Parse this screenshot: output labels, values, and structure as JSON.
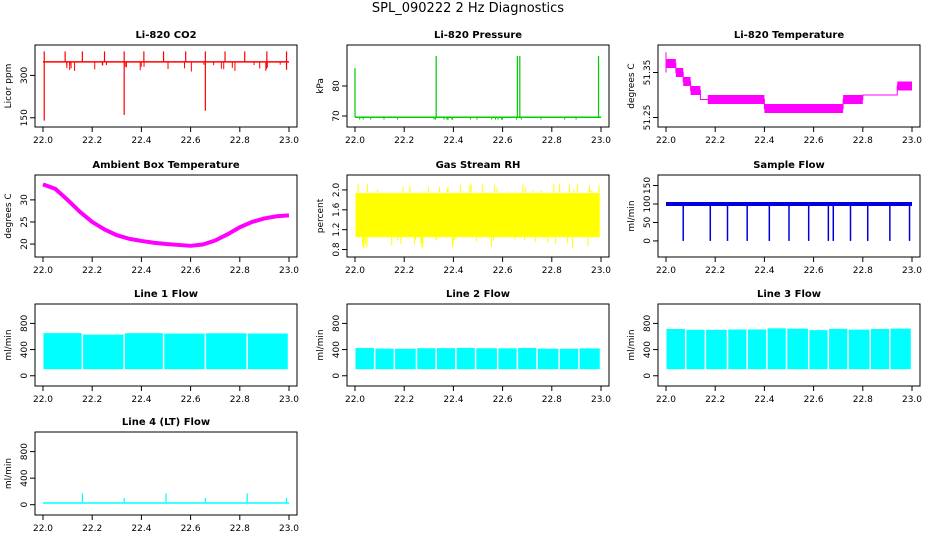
{
  "main_title": "SPL_090222  2 Hz Diagnostics",
  "chart_data": [
    {
      "id": "co2",
      "type": "line",
      "title": "Li-820 CO2",
      "ylabel": "Licor ppm",
      "xlim": [
        22.0,
        23.0
      ],
      "ylim": [
        135,
        390
      ],
      "xticks": [
        22.0,
        22.2,
        22.4,
        22.6,
        22.8,
        23.0
      ],
      "xtick_labels": [
        "22.0",
        "22.2",
        "22.4",
        "22.6",
        "22.8",
        "23.0"
      ],
      "yticks": [
        150,
        300
      ],
      "ytick_labels": [
        "150",
        "300"
      ],
      "color": "#ff0000",
      "baseline": 348,
      "spikes_up": [
        [
          22.005,
          385
        ],
        [
          22.09,
          385
        ],
        [
          22.16,
          385
        ],
        [
          22.25,
          385
        ],
        [
          22.33,
          385
        ],
        [
          22.41,
          385
        ],
        [
          22.49,
          385
        ],
        [
          22.58,
          385
        ],
        [
          22.66,
          385
        ],
        [
          22.74,
          385
        ],
        [
          22.82,
          385
        ],
        [
          22.91,
          385
        ],
        [
          22.99,
          385
        ]
      ],
      "spikes_down": [
        [
          22.005,
          140
        ],
        [
          22.33,
          160
        ],
        [
          22.66,
          175
        ],
        [
          22.99,
          320
        ]
      ]
    },
    {
      "id": "pressure",
      "type": "line",
      "title": "Li-820 Pressure",
      "ylabel": "kPa",
      "xlim": [
        22.0,
        23.0
      ],
      "ylim": [
        68,
        92
      ],
      "xticks": [
        22.0,
        22.2,
        22.4,
        22.6,
        22.8,
        23.0
      ],
      "xtick_labels": [
        "22.0",
        "22.2",
        "22.4",
        "22.6",
        "22.8",
        "23.0"
      ],
      "yticks": [
        70,
        80
      ],
      "ytick_labels": [
        "70",
        "80"
      ],
      "color": "#00cc00",
      "baseline": 69.6,
      "spikes_up": [
        [
          22.0,
          86
        ],
        [
          22.33,
          90
        ],
        [
          22.66,
          90
        ],
        [
          22.67,
          90
        ],
        [
          22.99,
          90
        ]
      ]
    },
    {
      "id": "temperature",
      "type": "line",
      "title": "Li-820 Temperature",
      "ylabel": "degrees C",
      "xlim": [
        22.0,
        23.0
      ],
      "ylim": [
        51.24,
        51.4
      ],
      "xticks": [
        22.0,
        22.2,
        22.4,
        22.6,
        22.8,
        23.0
      ],
      "xtick_labels": [
        "22.0",
        "22.2",
        "22.4",
        "22.6",
        "22.8",
        "23.0"
      ],
      "yticks": [
        51.25,
        51.35
      ],
      "ytick_labels": [
        "51.25",
        "51.35"
      ],
      "color": "#ff00ff",
      "x": [
        22.0,
        22.04,
        22.04,
        22.07,
        22.07,
        22.1,
        22.1,
        22.14,
        22.14,
        22.17,
        22.17,
        22.4,
        22.4,
        22.48,
        22.48,
        22.72,
        22.72,
        22.8,
        22.8,
        22.94,
        22.94,
        23.0
      ],
      "y": [
        51.37,
        51.37,
        51.35,
        51.35,
        51.33,
        51.33,
        51.31,
        51.31,
        51.29,
        51.29,
        51.29,
        51.29,
        51.27,
        51.27,
        51.27,
        51.27,
        51.29,
        51.29,
        51.3,
        51.3,
        51.32,
        51.32
      ]
    },
    {
      "id": "ambient",
      "type": "line",
      "title": "Ambient Box Temperature",
      "ylabel": "degrees C",
      "xlim": [
        22.0,
        23.0
      ],
      "ylim": [
        18.2,
        34.5
      ],
      "xticks": [
        22.0,
        22.2,
        22.4,
        22.6,
        22.8,
        23.0
      ],
      "xtick_labels": [
        "22.0",
        "22.2",
        "22.4",
        "22.6",
        "22.8",
        "23.0"
      ],
      "yticks": [
        20,
        25,
        30
      ],
      "ytick_labels": [
        "20",
        "25",
        "30"
      ],
      "color": "#ff00ff",
      "x": [
        22.0,
        22.05,
        22.1,
        22.15,
        22.2,
        22.25,
        22.3,
        22.35,
        22.4,
        22.45,
        22.5,
        22.55,
        22.6,
        22.65,
        22.7,
        22.75,
        22.8,
        22.85,
        22.9,
        22.95,
        23.0
      ],
      "y": [
        33.5,
        32.5,
        30.0,
        27.3,
        25.0,
        23.3,
        22.0,
        21.2,
        20.7,
        20.3,
        20.0,
        19.8,
        19.6,
        19.9,
        20.8,
        22.2,
        23.8,
        25.0,
        25.8,
        26.3,
        26.5
      ]
    },
    {
      "id": "rh",
      "type": "band",
      "title": "Gas Stream RH",
      "ylabel": "percent",
      "xlim": [
        22.0,
        23.0
      ],
      "ylim": [
        0.75,
        2.2
      ],
      "xticks": [
        22.0,
        22.2,
        22.4,
        22.6,
        22.8,
        23.0
      ],
      "xtick_labels": [
        "22.0",
        "22.2",
        "22.4",
        "22.6",
        "22.8",
        "23.0"
      ],
      "yticks": [
        0.8,
        1.2,
        1.6,
        2.0
      ],
      "ytick_labels": [
        "0.8",
        "1.2",
        "1.6",
        "2.0"
      ],
      "color": "#ffff00",
      "band_low": 1.05,
      "band_high": 1.95,
      "spike_low": 0.82,
      "spike_high": 2.13
    },
    {
      "id": "sample",
      "type": "line",
      "title": "Sample Flow",
      "ylabel": "ml/min",
      "xlim": [
        22.0,
        23.0
      ],
      "ylim": [
        -30,
        165
      ],
      "xticks": [
        22.0,
        22.2,
        22.4,
        22.6,
        22.8,
        23.0
      ],
      "xtick_labels": [
        "22.0",
        "22.2",
        "22.4",
        "22.6",
        "22.8",
        "23.0"
      ],
      "yticks": [
        0,
        50,
        100,
        150
      ],
      "ytick_labels": [
        "0",
        "50",
        "100",
        "150"
      ],
      "color": "#0000dd",
      "baseline": 100,
      "dips": [
        22.07,
        22.18,
        22.25,
        22.33,
        22.42,
        22.5,
        22.58,
        22.66,
        22.68,
        22.75,
        22.82,
        22.91,
        22.99
      ]
    },
    {
      "id": "line1",
      "type": "band",
      "title": "Line 1 Flow",
      "ylabel": "ml/min",
      "xlim": [
        22.0,
        23.0
      ],
      "ylim": [
        -80,
        1020
      ],
      "xticks": [
        22.0,
        22.2,
        22.4,
        22.6,
        22.8,
        23.0
      ],
      "xtick_labels": [
        "22.0",
        "22.2",
        "22.4",
        "22.6",
        "22.8",
        "23.0"
      ],
      "yticks": [
        0,
        400,
        800
      ],
      "ytick_labels": [
        "0",
        "400",
        "800"
      ],
      "color": "#00ffff",
      "band_low": 100,
      "band_high": 640,
      "gaps": [
        22.16,
        22.33,
        22.49,
        22.66,
        22.83
      ]
    },
    {
      "id": "line2",
      "type": "band",
      "title": "Line 2 Flow",
      "ylabel": "ml/min",
      "xlim": [
        22.0,
        23.0
      ],
      "ylim": [
        -80,
        1020
      ],
      "xticks": [
        22.0,
        22.2,
        22.4,
        22.6,
        22.8,
        23.0
      ],
      "xtick_labels": [
        "22.0",
        "22.2",
        "22.4",
        "22.6",
        "22.8",
        "23.0"
      ],
      "yticks": [
        0,
        400,
        800
      ],
      "ytick_labels": [
        "0",
        "400",
        "800"
      ],
      "color": "#00ffff",
      "band_low": 100,
      "band_high": 420,
      "gaps": [
        22.08,
        22.16,
        22.25,
        22.33,
        22.41,
        22.49,
        22.58,
        22.66,
        22.74,
        22.83,
        22.91
      ]
    },
    {
      "id": "line3",
      "type": "band",
      "title": "Line 3 Flow",
      "ylabel": "ml/min",
      "xlim": [
        22.0,
        23.0
      ],
      "ylim": [
        -80,
        1020
      ],
      "xticks": [
        22.0,
        22.2,
        22.4,
        22.6,
        22.8,
        23.0
      ],
      "xtick_labels": [
        "22.0",
        "22.2",
        "22.4",
        "22.6",
        "22.8",
        "23.0"
      ],
      "yticks": [
        0,
        400,
        800
      ],
      "ytick_labels": [
        "0",
        "400",
        "800"
      ],
      "color": "#00ffff",
      "band_low": 100,
      "band_high": 710,
      "gaps": [
        22.08,
        22.16,
        22.25,
        22.33,
        22.41,
        22.49,
        22.58,
        22.66,
        22.74,
        22.83,
        22.91
      ]
    },
    {
      "id": "line4",
      "type": "line",
      "title": "Line 4 (LT) Flow",
      "ylabel": "ml/min",
      "xlim": [
        22.0,
        23.0
      ],
      "ylim": [
        -80,
        1020
      ],
      "xticks": [
        22.0,
        22.2,
        22.4,
        22.6,
        22.8,
        23.0
      ],
      "xtick_labels": [
        "22.0",
        "22.2",
        "22.4",
        "22.6",
        "22.8",
        "23.0"
      ],
      "yticks": [
        0,
        400,
        800
      ],
      "ytick_labels": [
        "0",
        "400",
        "800"
      ],
      "color": "#00ffff",
      "baseline": 25,
      "spikes_up": [
        [
          22.16,
          170
        ],
        [
          22.33,
          100
        ],
        [
          22.5,
          170
        ],
        [
          22.66,
          100
        ],
        [
          22.83,
          170
        ],
        [
          22.99,
          100
        ]
      ]
    }
  ]
}
